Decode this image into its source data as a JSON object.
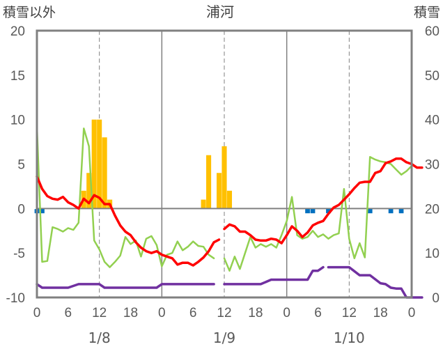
{
  "chart_data": {
    "type": "line",
    "title": "浦河",
    "ylabel_left": "積雪以外",
    "ylabel_right": "積雪",
    "ylim_left": [
      -10,
      20
    ],
    "ylim_right": [
      0,
      60
    ],
    "yticks_left": [
      "20",
      "15",
      "10",
      "5",
      "0",
      "-5",
      "-10"
    ],
    "yticks_right": [
      "60",
      "50",
      "40",
      "30",
      "20",
      "10",
      "0"
    ],
    "xticks": [
      "0",
      "6",
      "12",
      "18",
      "0",
      "6",
      "12",
      "18",
      "0",
      "6",
      "12",
      "18",
      "0"
    ],
    "x_range_hours": [
      0,
      72
    ],
    "date_labels": [
      {
        "hour": 12,
        "label": "1/8"
      },
      {
        "hour": 36,
        "label": "1/9"
      },
      {
        "hour": 60,
        "label": "1/10"
      }
    ],
    "colors": {
      "temperature": "#ff0000",
      "green_line": "#92d050",
      "purple_line": "#7030a0",
      "snowfall_bars": "#ffc000",
      "blue_marks": "#0070c0",
      "axis": "#808080",
      "grid": "#808080"
    },
    "series": [
      {
        "key": "temperature",
        "points": [
          [
            0,
            3.6
          ],
          [
            1,
            2.2
          ],
          [
            2,
            1.4
          ],
          [
            3,
            1.1
          ],
          [
            4,
            1.0
          ],
          [
            5,
            1.3
          ],
          [
            6,
            0.7
          ],
          [
            7,
            0.4
          ],
          [
            8,
            0.0
          ],
          [
            9,
            1.1
          ],
          [
            10,
            0.6
          ],
          [
            11,
            1.5
          ],
          [
            12,
            1.2
          ],
          [
            13,
            0.5
          ],
          [
            14,
            0.5
          ],
          [
            15,
            -0.8
          ],
          [
            16,
            -1.9
          ],
          [
            17,
            -2.6
          ],
          [
            18,
            -3.0
          ],
          [
            19,
            -3.8
          ],
          [
            20,
            -4.4
          ],
          [
            21,
            -4.8
          ],
          [
            22,
            -5.0
          ],
          [
            23,
            -4.8
          ],
          [
            24,
            -5.2
          ],
          [
            25,
            -5.4
          ],
          [
            26,
            -5.6
          ],
          [
            27,
            -6.3
          ],
          [
            28,
            -6.1
          ],
          [
            29,
            -6.1
          ],
          [
            30,
            -6.4
          ],
          [
            31,
            -6.0
          ],
          [
            32,
            -5.5
          ],
          [
            33,
            -4.8
          ],
          [
            34,
            -3.8
          ],
          [
            35,
            -3.5
          ],
          null,
          [
            36,
            -2.3
          ],
          [
            37,
            -1.8
          ],
          [
            38,
            -2.0
          ],
          [
            39,
            -2.6
          ],
          [
            40,
            -2.6
          ],
          [
            41,
            -3.0
          ],
          [
            42,
            -3.5
          ],
          [
            43,
            -3.6
          ],
          [
            44,
            -3.6
          ],
          [
            45,
            -3.4
          ],
          [
            46,
            -3.5
          ],
          [
            47,
            -3.9
          ],
          [
            48,
            -3.0
          ],
          [
            49,
            -2.0
          ],
          [
            50,
            -2.5
          ],
          [
            51,
            -3.2
          ],
          [
            52,
            -2.7
          ],
          [
            53,
            -1.9
          ],
          [
            54,
            -1.6
          ],
          [
            55,
            -1.4
          ],
          [
            56,
            -0.6
          ],
          [
            57,
            0.1
          ],
          [
            58,
            0.4
          ],
          [
            59,
            1.0
          ],
          [
            60,
            1.6
          ],
          [
            61,
            2.3
          ],
          [
            62,
            2.9
          ],
          [
            63,
            3.0
          ],
          [
            64,
            3.0
          ],
          [
            65,
            4.0
          ],
          [
            66,
            4.2
          ],
          [
            67,
            5.1
          ],
          [
            68,
            5.3
          ],
          [
            69,
            5.6
          ],
          [
            70,
            5.6
          ],
          [
            71,
            5.2
          ],
          [
            72,
            5.0
          ],
          [
            73,
            4.6
          ],
          [
            74,
            4.6
          ]
        ]
      },
      {
        "key": "green_line",
        "points": [
          [
            0,
            9.2
          ],
          [
            1,
            -6.0
          ],
          [
            2,
            -5.9
          ],
          [
            3,
            -2.1
          ],
          [
            4,
            -2.3
          ],
          [
            5,
            -2.6
          ],
          [
            6,
            -2.2
          ],
          [
            7,
            -2.4
          ],
          [
            8,
            -1.6
          ],
          [
            9,
            9.0
          ],
          [
            10,
            7.0
          ],
          [
            11,
            -3.6
          ],
          [
            12,
            -4.6
          ],
          [
            13,
            -6.0
          ],
          [
            14,
            -6.6
          ],
          [
            15,
            -6.0
          ],
          [
            16,
            -5.3
          ],
          [
            17,
            -3.2
          ],
          [
            18,
            -4.0
          ],
          [
            19,
            -3.6
          ],
          [
            20,
            -5.4
          ],
          [
            21,
            -3.4
          ],
          [
            22,
            -3.1
          ],
          [
            23,
            -4.1
          ],
          [
            24,
            -6.5
          ],
          [
            25,
            -5.2
          ],
          [
            26,
            -5.0
          ],
          [
            27,
            -3.7
          ],
          [
            28,
            -4.7
          ],
          [
            29,
            -4.3
          ],
          [
            30,
            -3.7
          ],
          [
            31,
            -4.2
          ],
          [
            32,
            -4.3
          ],
          [
            33,
            -5.2
          ],
          [
            34,
            -5.6
          ],
          null,
          [
            36,
            -5.6
          ],
          [
            37,
            -7.0
          ],
          [
            38,
            -5.4
          ],
          [
            39,
            -6.8
          ],
          [
            40,
            -5.0
          ],
          [
            41,
            -3.2
          ],
          [
            42,
            -4.4
          ],
          [
            43,
            -4.0
          ],
          [
            44,
            -4.3
          ],
          [
            45,
            -4.0
          ],
          [
            46,
            -4.4
          ],
          [
            47,
            -3.0
          ],
          [
            48,
            -1.4
          ],
          [
            49,
            1.3
          ],
          [
            50,
            -3.0
          ],
          [
            51,
            -3.4
          ],
          [
            52,
            -3.2
          ],
          [
            53,
            -2.5
          ],
          [
            54,
            -3.2
          ],
          [
            55,
            -2.9
          ],
          [
            56,
            -3.4
          ],
          [
            57,
            -3.0
          ],
          [
            58,
            -2.8
          ],
          [
            59,
            2.2
          ],
          [
            60,
            -3.4
          ],
          [
            61,
            -5.6
          ],
          [
            62,
            -3.9
          ],
          [
            63,
            -5.5
          ],
          [
            64,
            5.8
          ],
          [
            65,
            5.5
          ],
          [
            66,
            5.3
          ],
          [
            67,
            5.2
          ],
          [
            68,
            5.0
          ],
          [
            69,
            4.4
          ],
          [
            70,
            3.8
          ],
          [
            71,
            4.2
          ],
          [
            72,
            4.8
          ]
        ]
      },
      {
        "key": "purple_line",
        "points": [
          [
            0,
            -8.5
          ],
          [
            1,
            -8.9
          ],
          [
            6,
            -8.9
          ],
          [
            8,
            -8.5
          ],
          [
            12,
            -8.5
          ],
          [
            13,
            -8.9
          ],
          [
            23,
            -8.9
          ],
          [
            24,
            -8.5
          ],
          [
            34,
            -8.5
          ],
          null,
          [
            36,
            -8.5
          ],
          [
            43,
            -8.5
          ],
          [
            45,
            -8.0
          ],
          [
            52,
            -8.0
          ],
          [
            53,
            -7.0
          ],
          [
            54,
            -7.0
          ],
          [
            55,
            -6.6
          ],
          null,
          [
            56,
            -6.6
          ],
          [
            60,
            -6.6
          ],
          [
            62,
            -7.5
          ],
          [
            64,
            -7.5
          ],
          [
            66,
            -8.4
          ],
          [
            67,
            -8.5
          ],
          [
            68,
            -8.9
          ],
          [
            69,
            -9.0
          ],
          [
            70,
            -9.0
          ],
          [
            71,
            -10.0
          ],
          [
            74,
            -10.0
          ]
        ]
      }
    ],
    "snowfall_bars": [
      {
        "hour": 9,
        "value": 2.0
      },
      {
        "hour": 10,
        "value": 4.0
      },
      {
        "hour": 11,
        "value": 10.0
      },
      {
        "hour": 12,
        "value": 10.0
      },
      {
        "hour": 13,
        "value": 8.0
      },
      {
        "hour": 14,
        "value": 1.0
      },
      {
        "hour": 32,
        "value": 1.0
      },
      {
        "hour": 33,
        "value": 6.0
      },
      {
        "hour": 35,
        "value": 4.0
      },
      {
        "hour": 36,
        "value": 7.0
      },
      {
        "hour": 37,
        "value": 2.0
      }
    ],
    "blue_marks": [
      {
        "hour": 0,
        "value": -0.3
      },
      {
        "hour": 1,
        "value": -0.3
      },
      {
        "hour": 52,
        "value": -0.3
      },
      {
        "hour": 53,
        "value": -0.3
      },
      {
        "hour": 56,
        "value": -0.3
      },
      {
        "hour": 64,
        "value": -0.3
      },
      {
        "hour": 68,
        "value": -0.3
      },
      {
        "hour": 70,
        "value": -0.3
      }
    ]
  }
}
